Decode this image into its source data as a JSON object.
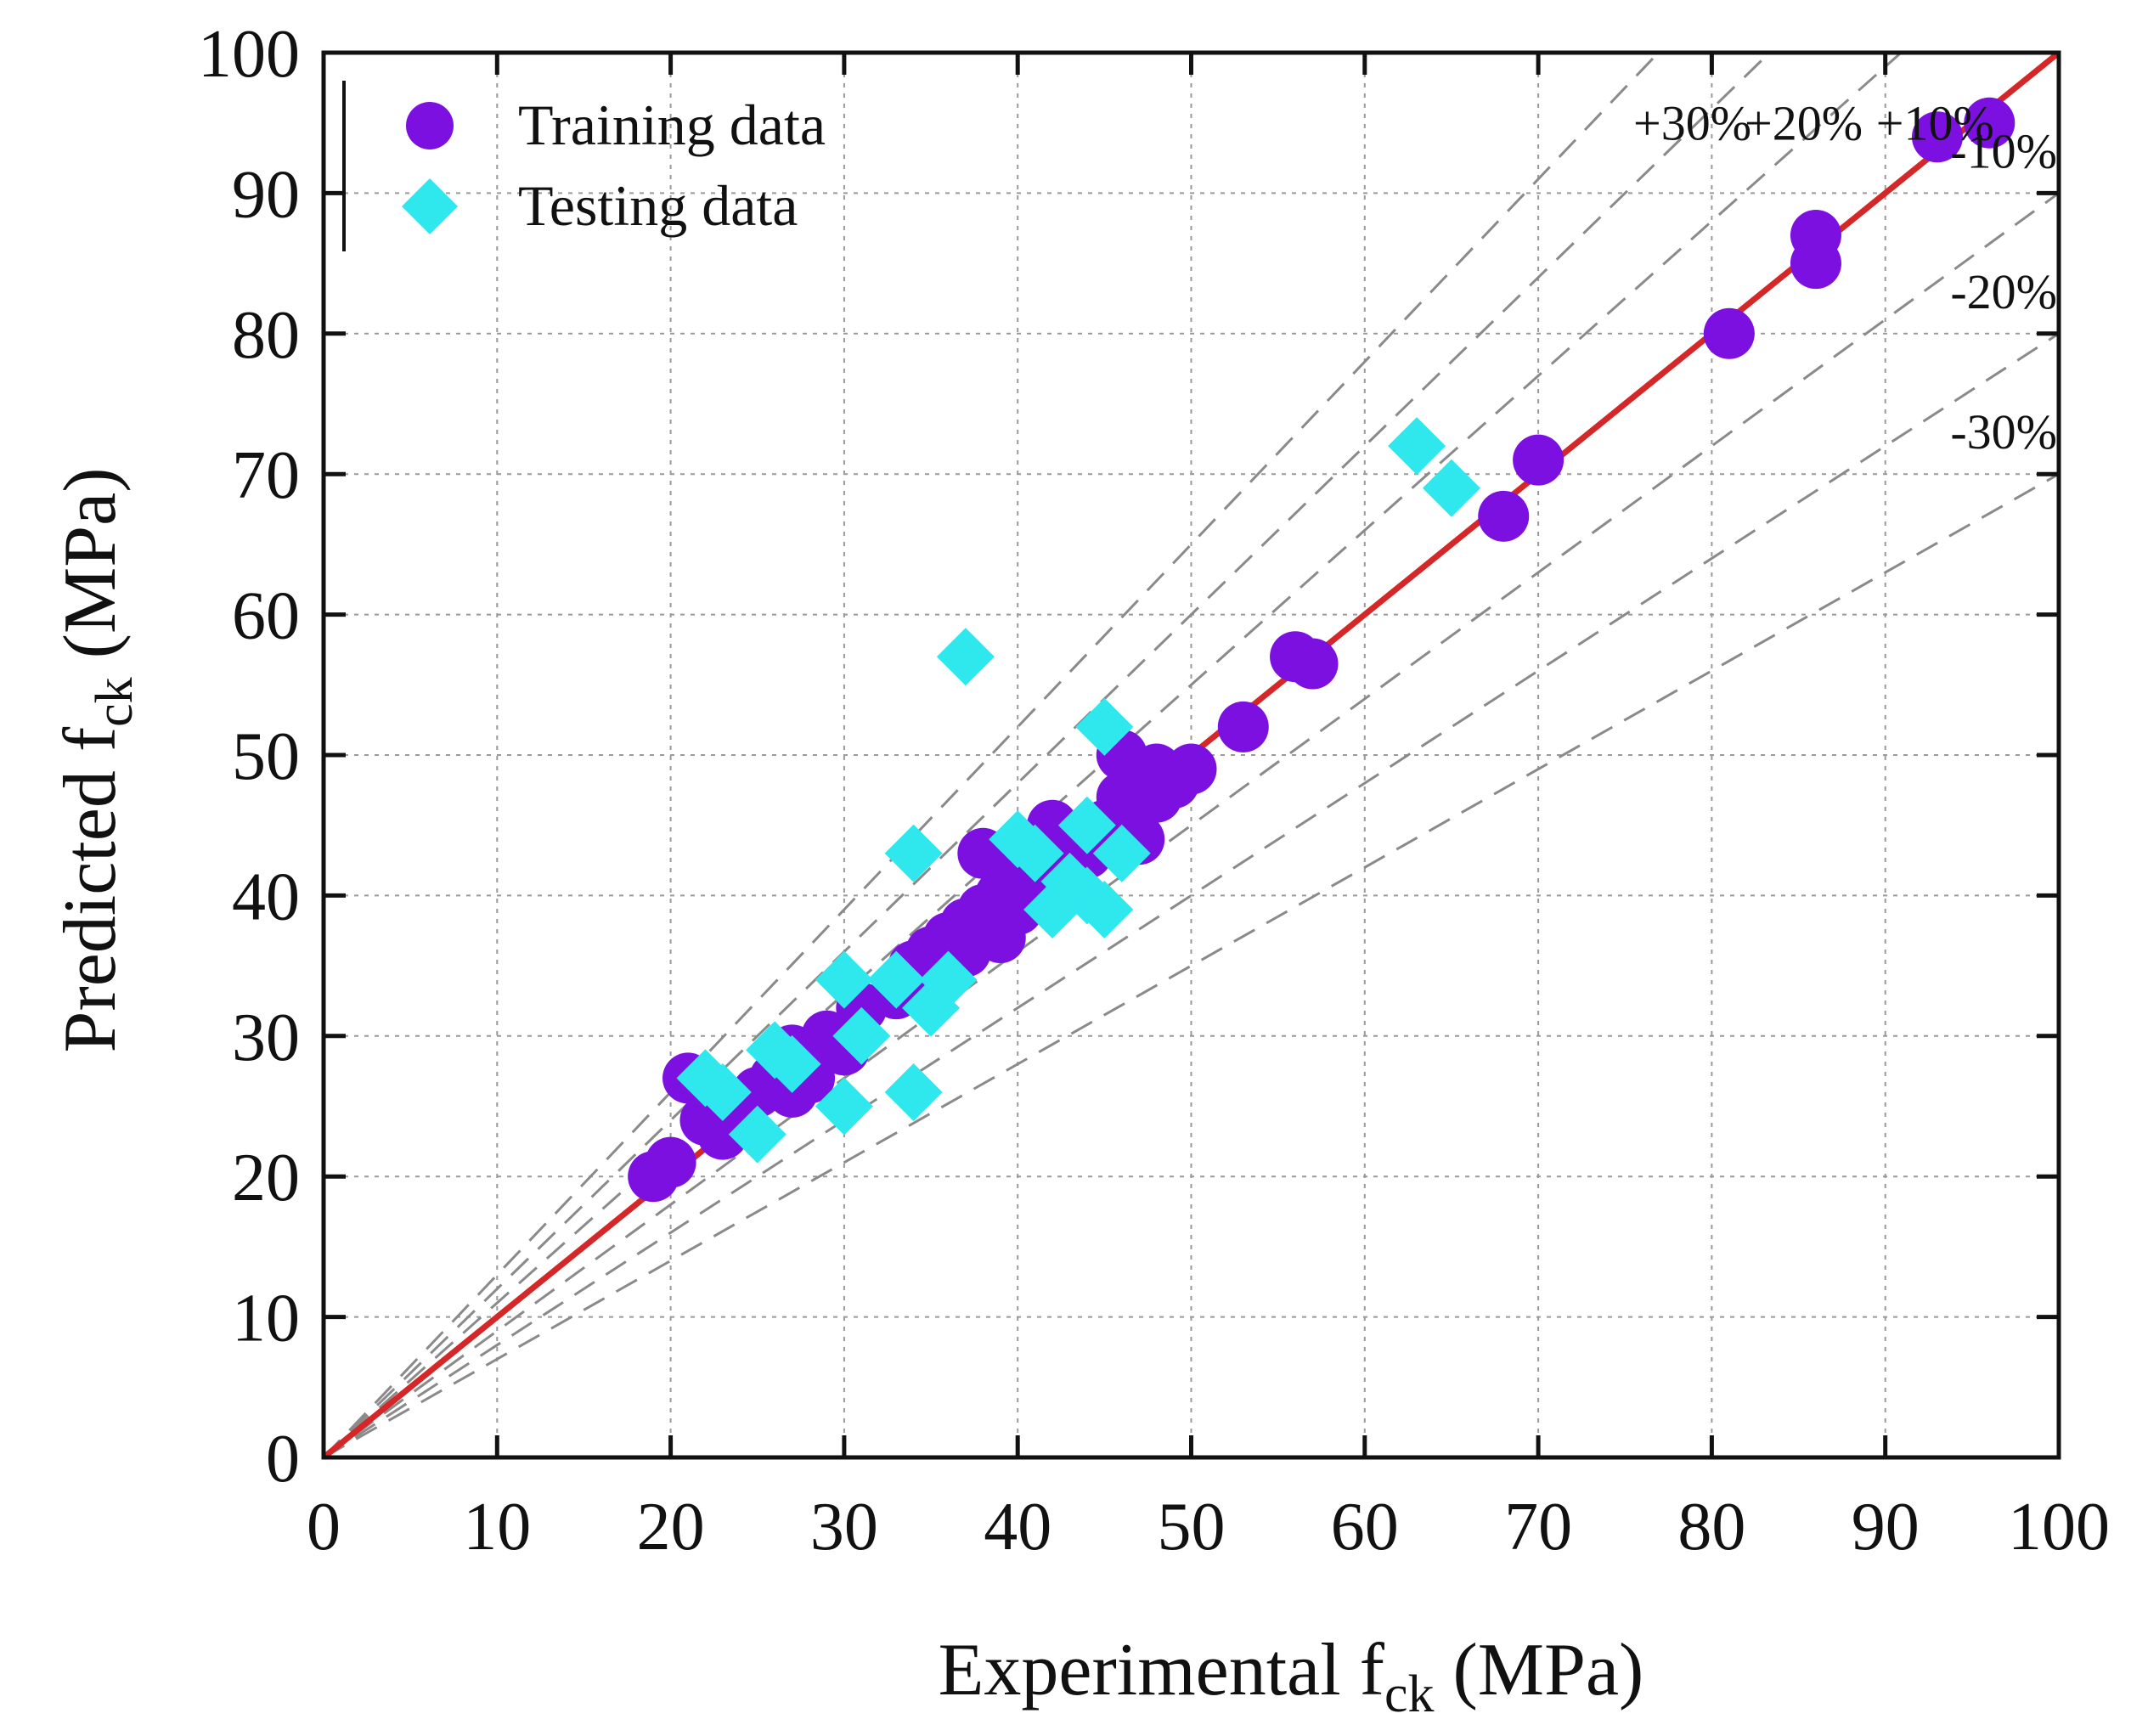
{
  "chart_data": {
    "type": "scatter",
    "title": "",
    "xlabel": {
      "main": "Experimental f",
      "sub": "ck",
      "unit": " (MPa)"
    },
    "ylabel": {
      "main": "Predicted f",
      "sub": "ck",
      "unit": " (MPa)"
    },
    "xlim": [
      0,
      100
    ],
    "ylim": [
      0,
      100
    ],
    "xticks": [
      0,
      10,
      20,
      30,
      40,
      50,
      60,
      70,
      80,
      90,
      100
    ],
    "yticks": [
      0,
      10,
      20,
      30,
      40,
      50,
      60,
      70,
      80,
      90,
      100
    ],
    "grid": true,
    "legend_position": "top-left",
    "reference_line": {
      "name": "1:1 line",
      "slope": 1,
      "color": "#d62728"
    },
    "bands": [
      {
        "label": "+30%",
        "slope": 1.3
      },
      {
        "label": "+20%",
        "slope": 1.2
      },
      {
        "label": "+10%",
        "slope": 1.1
      },
      {
        "label": "-10%",
        "slope": 0.9
      },
      {
        "label": "-20%",
        "slope": 0.8
      },
      {
        "label": "-30%",
        "slope": 0.7
      }
    ],
    "series": [
      {
        "name": "Training data",
        "marker": "circle",
        "color": "#7b10e0",
        "points": [
          [
            19,
            20
          ],
          [
            20,
            21
          ],
          [
            21,
            27
          ],
          [
            22,
            24
          ],
          [
            23,
            23
          ],
          [
            24,
            25
          ],
          [
            25,
            26
          ],
          [
            26,
            27
          ],
          [
            27,
            26
          ],
          [
            27,
            29
          ],
          [
            28,
            28
          ],
          [
            28,
            27
          ],
          [
            29,
            30
          ],
          [
            30,
            29
          ],
          [
            31,
            32
          ],
          [
            33,
            33
          ],
          [
            34,
            35
          ],
          [
            35,
            36
          ],
          [
            36,
            37
          ],
          [
            37,
            36
          ],
          [
            37,
            38
          ],
          [
            38,
            39
          ],
          [
            38,
            43
          ],
          [
            39,
            37
          ],
          [
            39,
            40
          ],
          [
            40,
            39
          ],
          [
            40,
            41
          ],
          [
            41,
            42
          ],
          [
            42,
            40
          ],
          [
            42,
            45
          ],
          [
            43,
            42
          ],
          [
            43,
            44
          ],
          [
            44,
            43
          ],
          [
            45,
            45
          ],
          [
            46,
            47
          ],
          [
            46,
            50
          ],
          [
            47,
            44
          ],
          [
            47,
            48
          ],
          [
            48,
            47
          ],
          [
            48,
            49
          ],
          [
            49,
            48
          ],
          [
            50,
            49
          ],
          [
            53,
            52
          ],
          [
            56,
            57
          ],
          [
            57,
            56.5
          ],
          [
            68,
            67
          ],
          [
            70,
            71
          ],
          [
            81,
            80
          ],
          [
            86,
            85
          ],
          [
            86,
            87
          ],
          [
            93,
            94
          ],
          [
            96,
            95
          ]
        ]
      },
      {
        "name": "Testing data",
        "marker": "diamond",
        "color": "#2ee8ee",
        "points": [
          [
            22,
            27
          ],
          [
            23,
            26
          ],
          [
            25,
            23
          ],
          [
            26,
            29
          ],
          [
            27,
            28
          ],
          [
            30,
            25
          ],
          [
            30,
            34
          ],
          [
            31,
            30
          ],
          [
            33,
            34
          ],
          [
            34,
            43
          ],
          [
            34,
            26
          ],
          [
            35,
            32
          ],
          [
            36,
            34
          ],
          [
            37,
            57
          ],
          [
            40,
            44
          ],
          [
            41,
            43
          ],
          [
            42,
            39
          ],
          [
            43,
            41
          ],
          [
            44,
            40
          ],
          [
            44,
            45
          ],
          [
            45,
            39
          ],
          [
            45,
            52
          ],
          [
            46,
            43
          ],
          [
            63,
            72
          ],
          [
            65,
            69
          ]
        ]
      }
    ]
  }
}
